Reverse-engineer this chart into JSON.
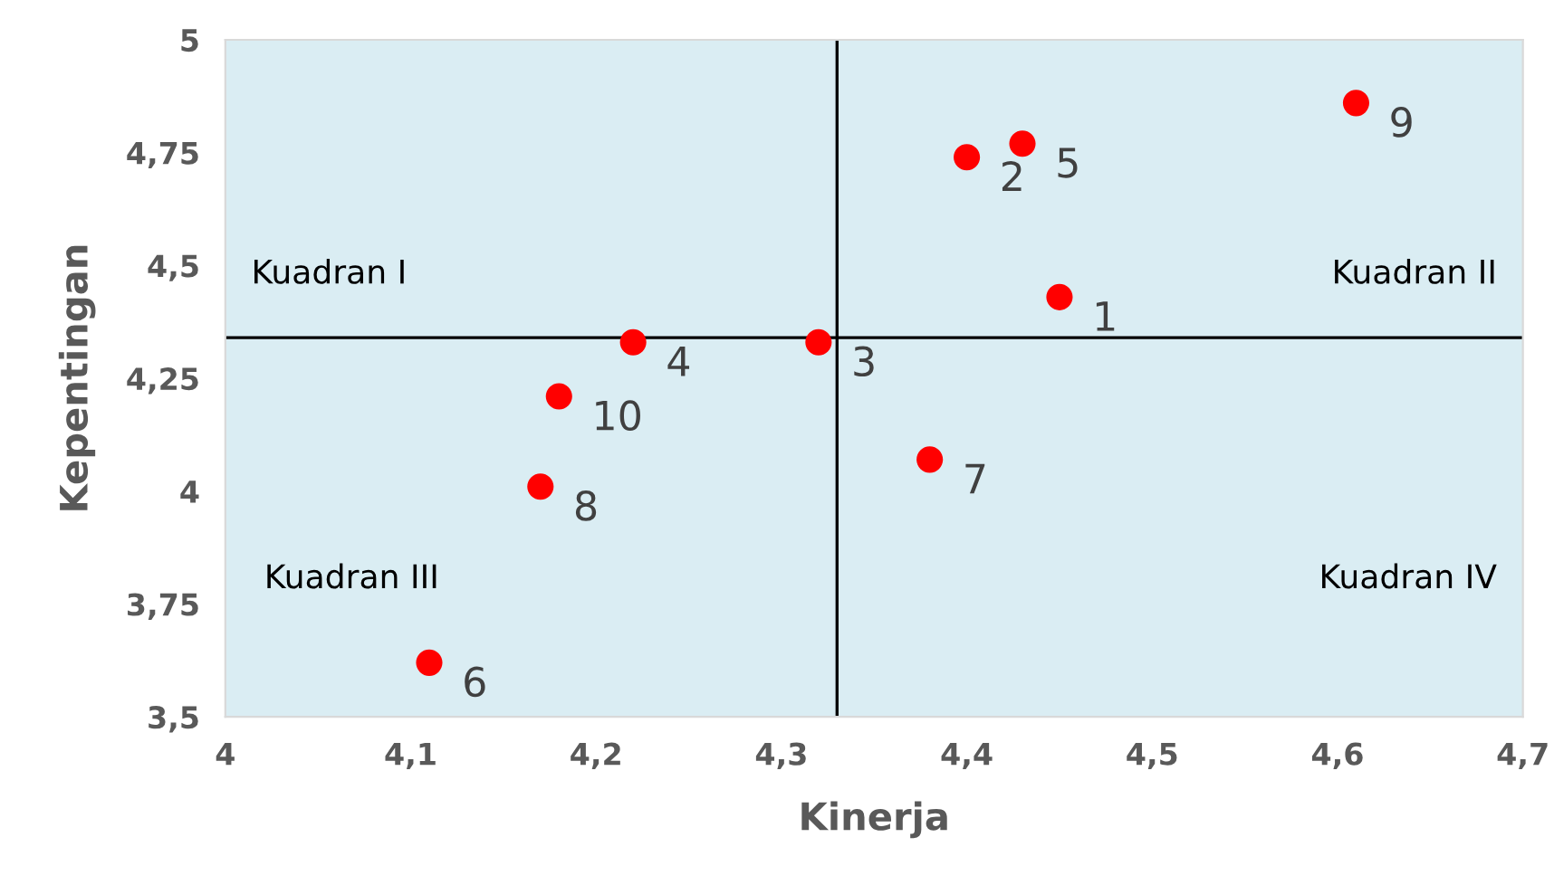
{
  "chart_data": {
    "type": "scatter",
    "xlabel": "Kinerja",
    "ylabel": "Kepentingan",
    "x": [
      4.45,
      4.4,
      4.32,
      4.22,
      4.43,
      4.11,
      4.38,
      4.17,
      4.61,
      4.18
    ],
    "series": [
      {
        "color": "#ff0000",
        "values": [
          4.43,
          4.74,
          4.33,
          4.33,
          4.77,
          3.62,
          4.07,
          4.01,
          4.86,
          4.21
        ]
      }
    ],
    "xlim": [
      4,
      4.7
    ],
    "ylim": [
      3.5,
      5
    ],
    "xticks": [
      4,
      {
        "value": 4.1,
        "label": "4,1"
      },
      {
        "value": 4.2,
        "label": "4,2"
      },
      {
        "value": 4.3,
        "label": "4,3"
      },
      {
        "value": 4.4,
        "label": "4,4"
      },
      {
        "value": 4.5,
        "label": "4,5"
      },
      {
        "value": 4.6,
        "label": "4,6"
      },
      {
        "value": 4.7,
        "label": "4,7"
      }
    ],
    "yticks": [
      {
        "value": 3.5,
        "label": "3,5"
      },
      {
        "value": 3.75,
        "label": "3,75"
      },
      4,
      {
        "value": 4.25,
        "label": "4,25"
      },
      {
        "value": 4.5,
        "label": "4,5"
      },
      {
        "value": 4.75,
        "label": "4,75"
      },
      5
    ],
    "ref_lines": [
      {
        "axis": "x",
        "value": 4.33,
        "color": "#000000"
      },
      {
        "axis": "y",
        "value": 4.34,
        "color": "#000000"
      }
    ],
    "annotations": [
      "Kuadran I",
      "Kuadran II",
      "Kuadran III",
      "Kuadran IV",
      {
        "text": "1",
        "x": 4.45,
        "y": 4.43
      },
      {
        "text": "2",
        "x": 4.4,
        "y": 4.74
      },
      {
        "text": "3",
        "x": 4.32,
        "y": 4.33
      },
      {
        "text": "4",
        "x": 4.22,
        "y": 4.33
      },
      {
        "text": "5",
        "x": 4.43,
        "y": 4.77
      },
      {
        "text": "6",
        "x": 4.11,
        "y": 3.62
      },
      {
        "text": "7",
        "x": 4.38,
        "y": 4.07
      },
      {
        "text": "8",
        "x": 4.17,
        "y": 4.01
      },
      {
        "text": "9",
        "x": 4.61,
        "y": 4.86
      },
      {
        "text": "10",
        "x": 4.18,
        "y": 4.21
      }
    ],
    "marker": "circle",
    "grid": false,
    "legend": false
  }
}
